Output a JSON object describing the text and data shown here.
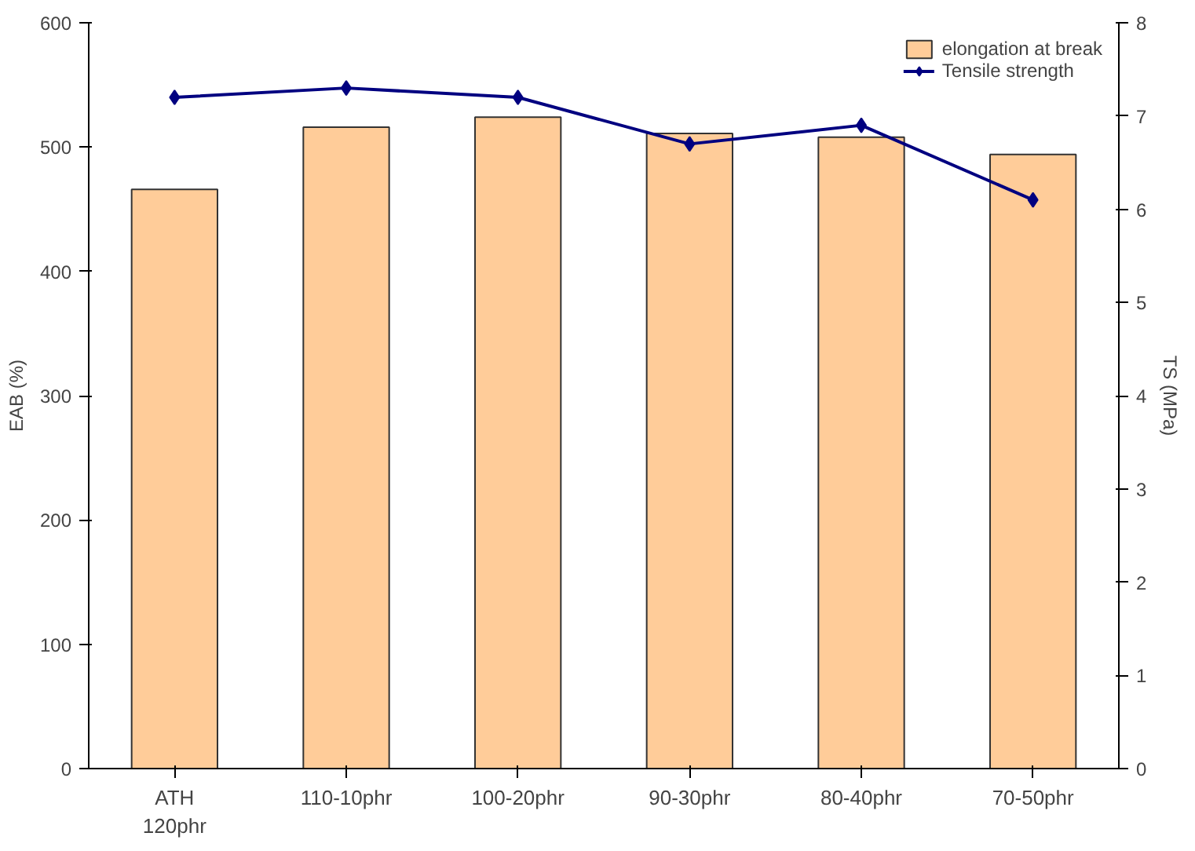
{
  "chart_data": {
    "type": "bar",
    "ylabel": "EAB (%)",
    "y2label": "TS (MPa)",
    "categories": [
      "ATH\n120phr",
      "110-10phr",
      "100-20phr",
      "90-30phr",
      "80-40phr",
      "70-50phr"
    ],
    "series": [
      {
        "name": "elongation at break",
        "color": "#ffcc99",
        "values": [
          466,
          516,
          524,
          511,
          508,
          494
        ]
      },
      {
        "name": "Tensile strength",
        "type": "line",
        "axis": "y2",
        "color": "#000080",
        "marker": "diamond",
        "values": [
          7.2,
          7.3,
          7.2,
          6.7,
          6.9,
          6.1
        ]
      }
    ],
    "ylim": [
      0,
      600
    ],
    "yticks": [
      0,
      100,
      200,
      300,
      400,
      500,
      600
    ],
    "y2lim": [
      0,
      8
    ],
    "y2ticks": [
      0,
      1,
      2,
      3,
      4,
      5,
      6,
      7,
      8
    ],
    "legend": "top right",
    "grid": false
  }
}
